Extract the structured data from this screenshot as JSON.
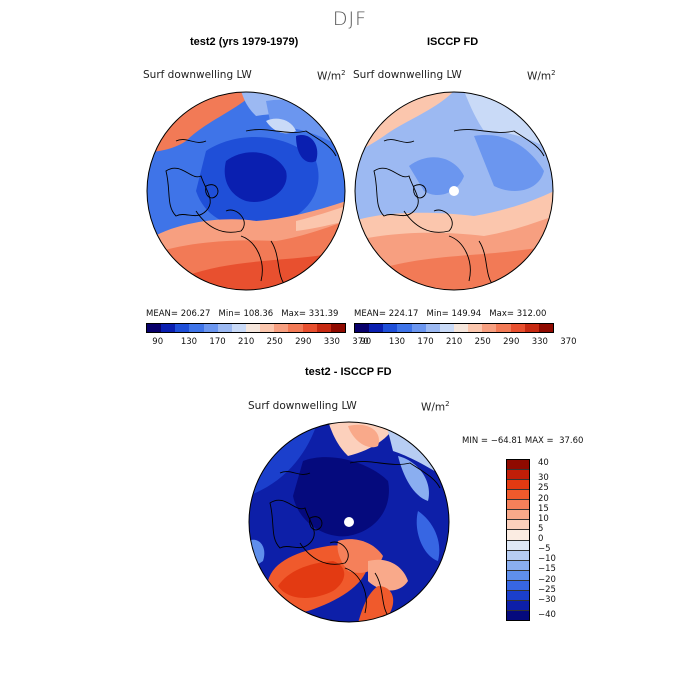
{
  "title": "DJF",
  "panels": [
    {
      "title": "test2 (yrs 1979-1979)",
      "variable": "Surf downwelling LW",
      "units": "W/m",
      "units_exp": "2",
      "stats": "MEAN= 206.27   Min= 108.36   Max= 331.39",
      "colorbar_ticks": [
        "90",
        "130",
        "170",
        "210",
        "250",
        "290",
        "330",
        "370"
      ]
    },
    {
      "title": "ISCCP FD",
      "variable": "Surf downwelling LW",
      "units": "W/m",
      "units_exp": "2",
      "stats": "MEAN= 224.17   Min= 149.94   Max= 312.00",
      "colorbar_ticks": [
        "90",
        "130",
        "170",
        "210",
        "250",
        "290",
        "330",
        "370"
      ]
    }
  ],
  "diff_panel": {
    "title": "test2 - ISCCP FD",
    "variable": "Surf downwelling LW",
    "units": "W/m",
    "units_exp": "2",
    "stats": "MIN = −64.81 MAX =  37.60",
    "colorbar_ticks": [
      "40",
      "30",
      "25",
      "20",
      "15",
      "10",
      "5",
      "0",
      "−5",
      "−10",
      "−15",
      "−20",
      "−25",
      "−30",
      "−40"
    ]
  },
  "colors": {
    "abs_scale": [
      "#08006b",
      "#0a1fb0",
      "#1f4fd8",
      "#3f74e8",
      "#6b96ef",
      "#9cb9f2",
      "#c9daf7",
      "#f5e6dc",
      "#fbc6ad",
      "#f79f80",
      "#f27a56",
      "#e8502f",
      "#c72a12",
      "#8f0a00"
    ],
    "diff_scale": [
      "#8f0a00",
      "#c11e08",
      "#e33a12",
      "#f05a2c",
      "#f5805a",
      "#f9a98a",
      "#fcd0bc",
      "#fbece2",
      "#dfe8f6",
      "#b7cdf3",
      "#8aaef0",
      "#5f8fec",
      "#3766e3",
      "#1b3fcc",
      "#0d1fa8",
      "#050a7d"
    ],
    "land_outline": "#000000"
  }
}
